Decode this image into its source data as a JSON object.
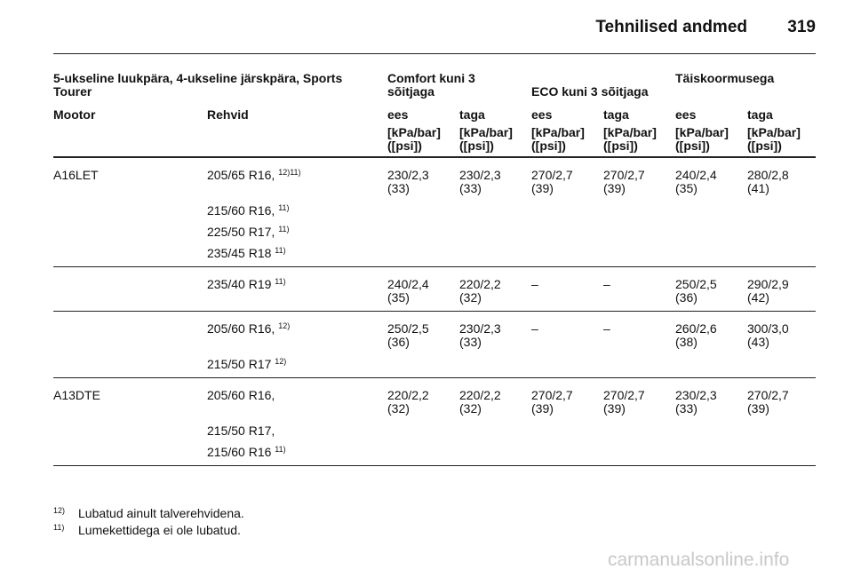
{
  "header": {
    "title": "Tehnilised andmed",
    "page": "319"
  },
  "table": {
    "group_headers": [
      "5-ukseline luukpära, 4-ukseline järskpära, Sports Tourer",
      "Comfort kuni 3 sõitjaga",
      "ECO kuni 3 sõitjaga",
      "Täiskoormusega"
    ],
    "columns": [
      "Mootor",
      "Rehvid",
      "ees",
      "taga",
      "ees",
      "taga",
      "ees",
      "taga"
    ],
    "units": [
      "[kPa/bar] ([psi])",
      "[kPa/bar] ([psi])",
      "[kPa/bar] ([psi])",
      "[kPa/bar] ([psi])",
      "[kPa/bar] ([psi])",
      "[kPa/bar] ([psi])"
    ],
    "rows": [
      {
        "engine": "A16LET",
        "tyres": [
          {
            "text": "205/65 R16,",
            "note": "12)11)"
          },
          {
            "text": "215/60 R16,",
            "note": "11)"
          },
          {
            "text": "225/50 R17,",
            "note": "11)"
          },
          {
            "text": "235/45 R18",
            "note": "11)"
          }
        ],
        "pressures": [
          {
            "bar": "230/2,3",
            "psi": "(33)"
          },
          {
            "bar": "230/2,3",
            "psi": "(33)"
          },
          {
            "bar": "270/2,7",
            "psi": "(39)"
          },
          {
            "bar": "270/2,7",
            "psi": "(39)"
          },
          {
            "bar": "240/2,4",
            "psi": "(35)"
          },
          {
            "bar": "280/2,8",
            "psi": "(41)"
          }
        ]
      },
      {
        "tyres": [
          {
            "text": "235/40 R19",
            "note": "11)"
          }
        ],
        "pressures": [
          {
            "bar": "240/2,4",
            "psi": "(35)"
          },
          {
            "bar": "220/2,2",
            "psi": "(32)"
          },
          "–",
          "–",
          {
            "bar": "250/2,5",
            "psi": "(36)"
          },
          {
            "bar": "290/2,9",
            "psi": "(42)"
          }
        ]
      },
      {
        "tyres": [
          {
            "text": "205/60 R16,",
            "note": "12)"
          },
          {
            "text": "215/50 R17",
            "note": "12)"
          }
        ],
        "pressures": [
          {
            "bar": "250/2,5",
            "psi": "(36)"
          },
          {
            "bar": "230/2,3",
            "psi": "(33)"
          },
          "–",
          "–",
          {
            "bar": "260/2,6",
            "psi": "(38)"
          },
          {
            "bar": "300/3,0",
            "psi": "(43)"
          }
        ]
      },
      {
        "engine": "A13DTE",
        "tyres": [
          {
            "text": "205/60 R16,"
          },
          {
            "text": "215/50 R17,"
          },
          {
            "text": "215/60 R16",
            "note": "11)"
          }
        ],
        "pressures": [
          {
            "bar": "220/2,2",
            "psi": "(32)"
          },
          {
            "bar": "220/2,2",
            "psi": "(32)"
          },
          {
            "bar": "270/2,7",
            "psi": "(39)"
          },
          {
            "bar": "270/2,7",
            "psi": "(39)"
          },
          {
            "bar": "230/2,3",
            "psi": "(33)"
          },
          {
            "bar": "270/2,7",
            "psi": "(39)"
          }
        ]
      }
    ]
  },
  "footnotes": [
    {
      "mark": "12)",
      "text": "Lubatud ainult talverehvidena."
    },
    {
      "mark": "11)",
      "text": "Lumekettidega ei ole lubatud."
    }
  ],
  "watermark": "carmanualsonline.info"
}
